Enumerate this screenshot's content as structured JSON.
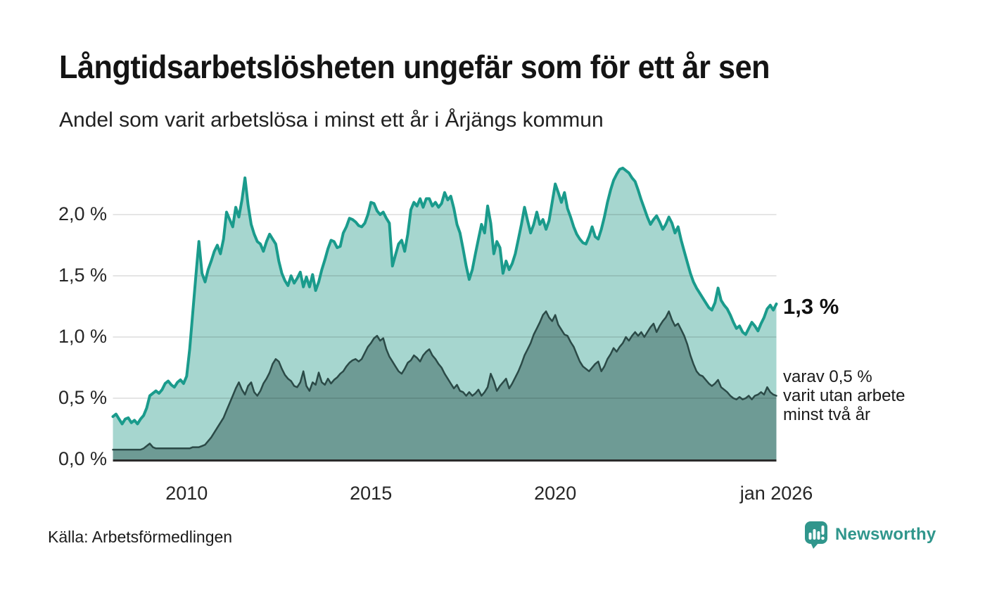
{
  "header": {
    "title": "Långtidsarbetslösheten ungefär som för ett år sen",
    "subtitle": "Andel som varit arbetslösa i minst ett år i Årjängs kommun"
  },
  "footer": {
    "source": "Källa: Arbetsförmedlingen",
    "brand": "Newsworthy"
  },
  "chart_data": {
    "type": "area",
    "title": "Långtidsarbetslösheten ungefär som för ett år sen",
    "subtitle": "Andel som varit arbetslösa i minst ett år i Årjängs kommun",
    "unit": "%",
    "decimal_separator": ",",
    "frequency": "monthly",
    "x_start": "2008-01",
    "x_end": "2026-01",
    "ylim": [
      0,
      2.45
    ],
    "grid": true,
    "x_axis": {
      "ticks": [
        {
          "label": "2010",
          "month_index": 24
        },
        {
          "label": "2015",
          "month_index": 84
        },
        {
          "label": "2020",
          "month_index": 144
        },
        {
          "label": "jan 2026",
          "month_index": 216
        }
      ]
    },
    "y_axis": {
      "ticks": [
        {
          "label": "0,0 %",
          "value": 0
        },
        {
          "label": "0,5 %",
          "value": 0.5
        },
        {
          "label": "1,0 %",
          "value": 1
        },
        {
          "label": "1,5 %",
          "value": 1.5
        },
        {
          "label": "2,0 %",
          "value": 2
        }
      ]
    },
    "colors": {
      "series1_line": "#1a9b8c",
      "series1_fill": "#a6d6cf",
      "series2_line": "#2b4a47",
      "series2_fill": "#6e9b95",
      "axis": "#2b2b2b",
      "gridline": "rgba(0,0,0,0.10)"
    },
    "series": [
      {
        "name": "Andel arbetslösa minst ett år",
        "latest_value": 1.3,
        "values": [
          0.35,
          0.37,
          0.33,
          0.29,
          0.33,
          0.34,
          0.3,
          0.32,
          0.29,
          0.33,
          0.36,
          0.42,
          0.52,
          0.54,
          0.56,
          0.54,
          0.57,
          0.62,
          0.64,
          0.61,
          0.59,
          0.63,
          0.65,
          0.62,
          0.68,
          0.9,
          1.2,
          1.5,
          1.78,
          1.52,
          1.45,
          1.55,
          1.62,
          1.7,
          1.75,
          1.68,
          1.8,
          2.02,
          1.96,
          1.9,
          2.06,
          1.98,
          2.12,
          2.3,
          2.08,
          1.92,
          1.84,
          1.78,
          1.76,
          1.7,
          1.78,
          1.84,
          1.8,
          1.76,
          1.62,
          1.52,
          1.46,
          1.42,
          1.5,
          1.44,
          1.48,
          1.53,
          1.41,
          1.49,
          1.41,
          1.51,
          1.38,
          1.45,
          1.55,
          1.63,
          1.72,
          1.79,
          1.78,
          1.73,
          1.74,
          1.85,
          1.9,
          1.97,
          1.96,
          1.94,
          1.91,
          1.9,
          1.93,
          2.0,
          2.1,
          2.09,
          2.03,
          2.0,
          2.02,
          1.97,
          1.93,
          1.58,
          1.67,
          1.76,
          1.79,
          1.7,
          1.84,
          2.04,
          2.1,
          2.07,
          2.13,
          2.06,
          2.13,
          2.13,
          2.07,
          2.1,
          2.06,
          2.09,
          2.18,
          2.12,
          2.15,
          2.05,
          1.92,
          1.85,
          1.72,
          1.58,
          1.47,
          1.55,
          1.68,
          1.8,
          1.92,
          1.85,
          2.07,
          1.93,
          1.68,
          1.78,
          1.73,
          1.52,
          1.62,
          1.55,
          1.6,
          1.68,
          1.8,
          1.92,
          2.06,
          1.95,
          1.85,
          1.92,
          2.02,
          1.92,
          1.96,
          1.88,
          1.95,
          2.1,
          2.25,
          2.18,
          2.1,
          2.18,
          2.05,
          1.98,
          1.9,
          1.84,
          1.8,
          1.77,
          1.76,
          1.82,
          1.9,
          1.82,
          1.8,
          1.88,
          1.98,
          2.1,
          2.2,
          2.28,
          2.33,
          2.37,
          2.38,
          2.36,
          2.34,
          2.3,
          2.27,
          2.2,
          2.12,
          2.05,
          1.98,
          1.92,
          1.96,
          1.99,
          1.94,
          1.88,
          1.92,
          1.98,
          1.93,
          1.85,
          1.9,
          1.79,
          1.7,
          1.61,
          1.52,
          1.45,
          1.4,
          1.36,
          1.32,
          1.28,
          1.24,
          1.22,
          1.28,
          1.4,
          1.3,
          1.26,
          1.23,
          1.18,
          1.12,
          1.07,
          1.09,
          1.04,
          1.02,
          1.07,
          1.12,
          1.09,
          1.05,
          1.11,
          1.16,
          1.23,
          1.26,
          1.22,
          1.27
        ]
      },
      {
        "name": "Andel arbetslösa minst två år",
        "latest_value": 0.5,
        "values": [
          0.08,
          0.08,
          0.08,
          0.08,
          0.08,
          0.08,
          0.08,
          0.08,
          0.08,
          0.08,
          0.09,
          0.11,
          0.13,
          0.1,
          0.09,
          0.09,
          0.09,
          0.09,
          0.09,
          0.09,
          0.09,
          0.09,
          0.09,
          0.09,
          0.09,
          0.09,
          0.1,
          0.1,
          0.1,
          0.11,
          0.12,
          0.15,
          0.18,
          0.22,
          0.26,
          0.3,
          0.34,
          0.4,
          0.46,
          0.52,
          0.58,
          0.63,
          0.57,
          0.53,
          0.6,
          0.63,
          0.55,
          0.52,
          0.56,
          0.62,
          0.66,
          0.71,
          0.78,
          0.82,
          0.8,
          0.74,
          0.69,
          0.66,
          0.64,
          0.6,
          0.59,
          0.63,
          0.72,
          0.6,
          0.56,
          0.63,
          0.61,
          0.71,
          0.63,
          0.61,
          0.66,
          0.62,
          0.65,
          0.67,
          0.7,
          0.72,
          0.76,
          0.79,
          0.81,
          0.82,
          0.8,
          0.82,
          0.87,
          0.92,
          0.95,
          0.99,
          1.01,
          0.97,
          0.99,
          0.9,
          0.84,
          0.8,
          0.76,
          0.72,
          0.7,
          0.74,
          0.79,
          0.81,
          0.85,
          0.83,
          0.8,
          0.85,
          0.88,
          0.9,
          0.85,
          0.82,
          0.78,
          0.75,
          0.7,
          0.66,
          0.62,
          0.58,
          0.61,
          0.56,
          0.55,
          0.52,
          0.55,
          0.52,
          0.54,
          0.57,
          0.52,
          0.55,
          0.59,
          0.7,
          0.64,
          0.56,
          0.6,
          0.63,
          0.66,
          0.58,
          0.62,
          0.67,
          0.72,
          0.78,
          0.85,
          0.9,
          0.95,
          1.02,
          1.07,
          1.12,
          1.18,
          1.21,
          1.16,
          1.13,
          1.18,
          1.1,
          1.06,
          1.02,
          1.01,
          0.96,
          0.92,
          0.86,
          0.8,
          0.76,
          0.74,
          0.72,
          0.75,
          0.78,
          0.8,
          0.72,
          0.76,
          0.82,
          0.86,
          0.91,
          0.88,
          0.92,
          0.95,
          1.0,
          0.97,
          1.01,
          1.04,
          1.01,
          1.04,
          1.0,
          1.04,
          1.08,
          1.11,
          1.04,
          1.09,
          1.13,
          1.16,
          1.21,
          1.14,
          1.09,
          1.11,
          1.06,
          1.01,
          0.94,
          0.85,
          0.78,
          0.72,
          0.69,
          0.68,
          0.65,
          0.62,
          0.6,
          0.62,
          0.65,
          0.59,
          0.57,
          0.55,
          0.52,
          0.5,
          0.49,
          0.51,
          0.49,
          0.5,
          0.52,
          0.49,
          0.52,
          0.53,
          0.55,
          0.53,
          0.59,
          0.55,
          0.53,
          0.52
        ]
      }
    ],
    "annotations": {
      "latest_label": "1,3 %",
      "secondary_lines": [
        "varav 0,5 %",
        "varit utan arbete",
        "minst två år"
      ]
    },
    "legend_position": "none"
  }
}
